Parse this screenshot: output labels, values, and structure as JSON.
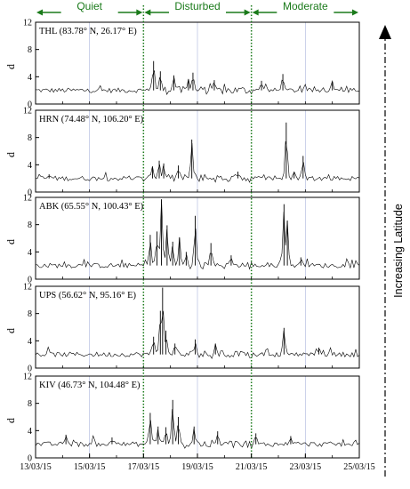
{
  "chart_data": {
    "type": "line",
    "phases": [
      {
        "label": "Quiet",
        "start": "13/03/15",
        "end": "17/03/15"
      },
      {
        "label": "Disturbed",
        "start": "17/03/15",
        "end": "21/03/15"
      },
      {
        "label": "Moderate",
        "start": "21/03/15",
        "end": "25/03/15"
      }
    ],
    "x_tick_labels": [
      "13/03/15",
      "15/03/15",
      "17/03/15",
      "19/03/15",
      "21/03/15",
      "23/03/15",
      "25/03/15"
    ],
    "x_range": [
      "13/03/15",
      "25/03/15"
    ],
    "ylabel": "d",
    "ylim": [
      0,
      12
    ],
    "yticks": [
      0,
      4,
      8,
      12
    ],
    "grid": "faint vertical lines at every second day",
    "arrow_label": "Increasing Latitude",
    "colors": {
      "phase": "#1a7a1a",
      "line": "#000000",
      "divider": "#1a7a1a",
      "grid": "#9aa6d6"
    },
    "panels": [
      {
        "station": "THL (83.78° N, 26.17° E)",
        "baseline": 2.0,
        "peaks": [
          {
            "date": "17/03/15 09:00",
            "value": 6.3
          },
          {
            "date": "17/03/15 15:00",
            "value": 4.8
          },
          {
            "date": "18/03/15 03:00",
            "value": 4.2
          },
          {
            "date": "18/03/15 16:00",
            "value": 3.6
          },
          {
            "date": "18/03/15 20:00",
            "value": 4.6
          },
          {
            "date": "19/03/15 15:00",
            "value": 3.5
          },
          {
            "date": "21/03/15 09:00",
            "value": 3.4
          },
          {
            "date": "22/03/15 04:00",
            "value": 4.4
          },
          {
            "date": "24/03/15 00:00",
            "value": 3.3
          }
        ]
      },
      {
        "station": "HRN (74.48° N, 106.20° E)",
        "baseline": 2.0,
        "peaks": [
          {
            "date": "13/03/15 12:00",
            "value": 2.6
          },
          {
            "date": "17/03/15 08:00",
            "value": 3.6
          },
          {
            "date": "17/03/15 14:00",
            "value": 4.6
          },
          {
            "date": "17/03/15 18:00",
            "value": 4.2
          },
          {
            "date": "18/03/15 07:00",
            "value": 3.9
          },
          {
            "date": "18/03/15 19:00",
            "value": 7.7
          },
          {
            "date": "20/03/15 12:00",
            "value": 3.0
          },
          {
            "date": "22/03/15 07:00",
            "value": 10.2
          },
          {
            "date": "22/03/15 14:00",
            "value": 3.0
          },
          {
            "date": "22/03/15 22:00",
            "value": 5.3
          }
        ]
      },
      {
        "station": "ABK (65.55° N, 100.43° E)",
        "baseline": 2.0,
        "peaks": [
          {
            "date": "17/03/15 06:00",
            "value": 6.5
          },
          {
            "date": "17/03/15 12:00",
            "value": 7.0
          },
          {
            "date": "17/03/15 16:00",
            "value": 11.7
          },
          {
            "date": "17/03/15 21:00",
            "value": 7.9
          },
          {
            "date": "18/03/15 02:00",
            "value": 5.5
          },
          {
            "date": "18/03/15 08:00",
            "value": 6.1
          },
          {
            "date": "18/03/15 14:00",
            "value": 4.0
          },
          {
            "date": "18/03/15 22:00",
            "value": 9.3
          },
          {
            "date": "19/03/15 12:00",
            "value": 5.3
          },
          {
            "date": "20/03/15 06:00",
            "value": 3.5
          },
          {
            "date": "22/03/15 05:00",
            "value": 11.0
          },
          {
            "date": "22/03/15 08:00",
            "value": 8.6
          },
          {
            "date": "22/03/15 20:00",
            "value": 3.2
          }
        ]
      },
      {
        "station": "UPS (56.62° N, 95.16° E)",
        "baseline": 2.0,
        "peaks": [
          {
            "date": "17/03/15 09:00",
            "value": 4.6
          },
          {
            "date": "17/03/15 15:00",
            "value": 8.4
          },
          {
            "date": "17/03/15 17:00",
            "value": 11.8
          },
          {
            "date": "17/03/15 20:00",
            "value": 5.5
          },
          {
            "date": "18/03/15 04:00",
            "value": 3.6
          },
          {
            "date": "18/03/15 22:00",
            "value": 4.2
          },
          {
            "date": "19/03/15 16:00",
            "value": 3.6
          },
          {
            "date": "22/03/15 05:00",
            "value": 5.9
          },
          {
            "date": "23/03/15 12:00",
            "value": 3.0
          }
        ]
      },
      {
        "station": "KIV (46.73° N, 104.48° E)",
        "baseline": 2.0,
        "peaks": [
          {
            "date": "14/03/15 03:00",
            "value": 3.4
          },
          {
            "date": "15/03/15 20:00",
            "value": 3.0
          },
          {
            "date": "17/03/15 06:00",
            "value": 6.6
          },
          {
            "date": "17/03/15 13:00",
            "value": 4.6
          },
          {
            "date": "17/03/15 20:00",
            "value": 4.5
          },
          {
            "date": "18/03/15 02:00",
            "value": 8.5
          },
          {
            "date": "18/03/15 07:00",
            "value": 6.0
          },
          {
            "date": "18/03/15 21:00",
            "value": 4.6
          },
          {
            "date": "19/03/15 18:00",
            "value": 3.9
          },
          {
            "date": "21/03/15 04:00",
            "value": 3.6
          },
          {
            "date": "22/03/15 11:00",
            "value": 3.2
          }
        ]
      }
    ]
  }
}
